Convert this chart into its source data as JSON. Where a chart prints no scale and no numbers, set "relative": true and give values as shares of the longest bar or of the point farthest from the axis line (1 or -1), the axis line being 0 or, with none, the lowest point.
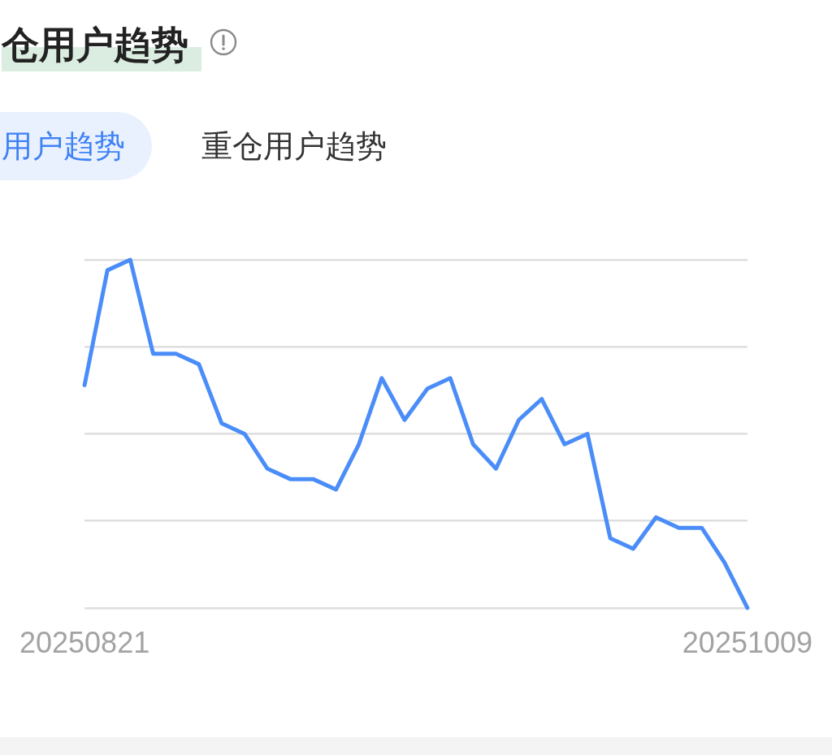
{
  "chart_data": {
    "type": "line",
    "title": "仓用户趋势",
    "annotations": [
      "用户趋势",
      "重仓用户趋势"
    ],
    "categories": [
      "20250821",
      null,
      null,
      null,
      null,
      null,
      null,
      null,
      null,
      null,
      null,
      null,
      null,
      null,
      null,
      null,
      null,
      null,
      null,
      null,
      null,
      null,
      null,
      null,
      null,
      null,
      null,
      null,
      null,
      "20251009"
    ],
    "series": [
      {
        "color": "#4b8df8",
        "values": [
          0.64,
          0.97,
          1,
          0.73,
          0.73,
          0.7,
          0.53,
          0.5,
          0.4,
          0.37,
          0.37,
          0.34,
          0.47,
          0.66,
          0.54,
          0.63,
          0.66,
          0.47,
          0.4,
          0.54,
          0.6,
          0.47,
          0.5,
          0.2,
          0.17,
          0.26,
          0.23,
          0.23,
          0.13,
          0
        ]
      }
    ],
    "relative": true,
    "grid": "y",
    "marker": "none",
    "line_style": "solid"
  }
}
